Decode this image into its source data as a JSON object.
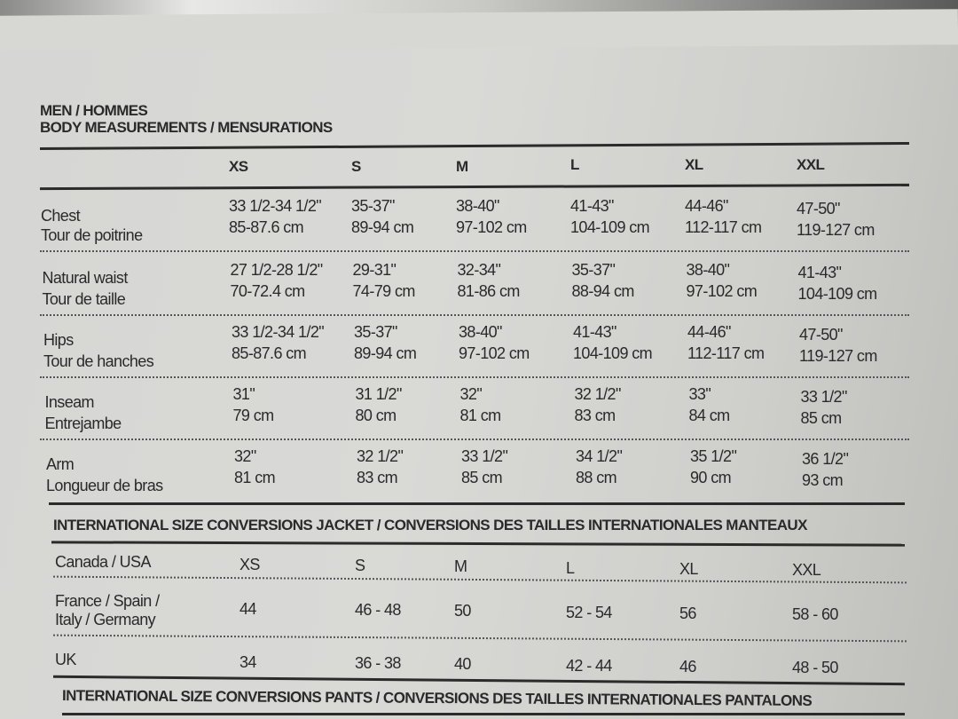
{
  "title": "MEN / HOMMES",
  "subtitle": "BODY MEASUREMENTS / MENSURATIONS",
  "sizes": [
    "XS",
    "S",
    "M",
    "L",
    "XL",
    "XXL"
  ],
  "body_rows": [
    {
      "label_en": "Chest",
      "label_fr": "Tour de poitrine",
      "inches": [
        "33 1/2-34 1/2\"",
        "35-37\"",
        "38-40\"",
        "41-43\"",
        "44-46\"",
        "47-50\""
      ],
      "cm": [
        "85-87.6 cm",
        "89-94 cm",
        "97-102 cm",
        "104-109 cm",
        "112-117 cm",
        "119-127 cm"
      ]
    },
    {
      "label_en": "Natural waist",
      "label_fr": "Tour de taille",
      "inches": [
        "27 1/2-28 1/2\"",
        "29-31\"",
        "32-34\"",
        "35-37\"",
        "38-40\"",
        "41-43\""
      ],
      "cm": [
        "70-72.4 cm",
        "74-79 cm",
        "81-86 cm",
        "88-94 cm",
        "97-102 cm",
        "104-109 cm"
      ]
    },
    {
      "label_en": "Hips",
      "label_fr": "Tour de hanches",
      "inches": [
        "33 1/2-34 1/2\"",
        "35-37\"",
        "38-40\"",
        "41-43\"",
        "44-46\"",
        "47-50\""
      ],
      "cm": [
        "85-87.6 cm",
        "89-94 cm",
        "97-102 cm",
        "104-109 cm",
        "112-117 cm",
        "119-127 cm"
      ]
    },
    {
      "label_en": "Inseam",
      "label_fr": "Entrejambe",
      "inches": [
        "31\"",
        "31 1/2\"",
        "32\"",
        "32 1/2\"",
        "33\"",
        "33 1/2\""
      ],
      "cm": [
        "79 cm",
        "80 cm",
        "81 cm",
        "83 cm",
        "84 cm",
        "85 cm"
      ]
    },
    {
      "label_en": "Arm",
      "label_fr": "Longueur de bras",
      "inches": [
        "32\"",
        "32 1/2\"",
        "33 1/2\"",
        "34 1/2\"",
        "35 1/2\"",
        "36 1/2\""
      ],
      "cm": [
        "81 cm",
        "83 cm",
        "85 cm",
        "88 cm",
        "90 cm",
        "93 cm"
      ]
    }
  ],
  "jacket_heading": "INTERNATIONAL SIZE CONVERSIONS JACKET / CONVERSIONS DES TAILLES INTERNATIONALES MANTEAUX",
  "jacket_rows": [
    {
      "label": "Canada / USA",
      "label2": "",
      "values": [
        "XS",
        "S",
        "M",
        "L",
        "XL",
        "XXL"
      ]
    },
    {
      "label": "France / Spain /",
      "label2": "Italy / Germany",
      "values": [
        "44",
        "46 - 48",
        "50",
        "52 - 54",
        "56",
        "58 - 60"
      ]
    },
    {
      "label": "UK",
      "label2": "",
      "values": [
        "34",
        "36 - 38",
        "40",
        "42 - 44",
        "46",
        "48 - 50"
      ]
    }
  ],
  "pants_heading": "INTERNATIONAL SIZE CONVERSIONS PANTS / CONVERSIONS DES TAILLES INTERNATIONALES PANTALONS"
}
